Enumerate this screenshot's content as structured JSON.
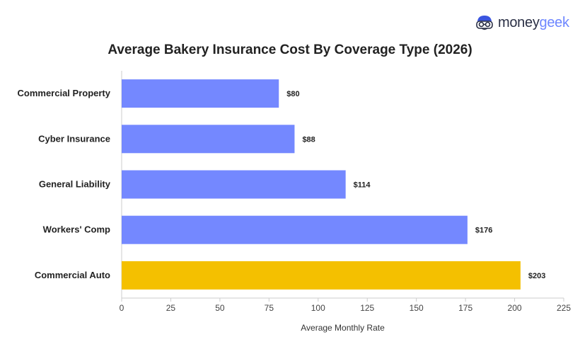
{
  "brand": {
    "name_part1": "money",
    "name_part2": "geek",
    "logo_icon": "moneygeek-mascot-icon"
  },
  "chart_data": {
    "type": "bar",
    "orientation": "horizontal",
    "title": "Average Bakery Insurance Cost By Coverage Type (2026)",
    "xlabel": "Average Monthly Rate",
    "ylabel": "",
    "xlim": [
      0,
      225
    ],
    "xticks": [
      0,
      25,
      50,
      75,
      100,
      125,
      150,
      175,
      200,
      225
    ],
    "grid": false,
    "categories": [
      "Commercial Property",
      "Cyber Insurance",
      "General Liability",
      "Workers' Comp",
      "Commercial Auto"
    ],
    "values": [
      80,
      88,
      114,
      176,
      203
    ],
    "value_labels": [
      "$80",
      "$88",
      "$114",
      "$176",
      "$203"
    ],
    "colors": [
      "#7488ff",
      "#7488ff",
      "#7488ff",
      "#7488ff",
      "#f4c000"
    ]
  }
}
